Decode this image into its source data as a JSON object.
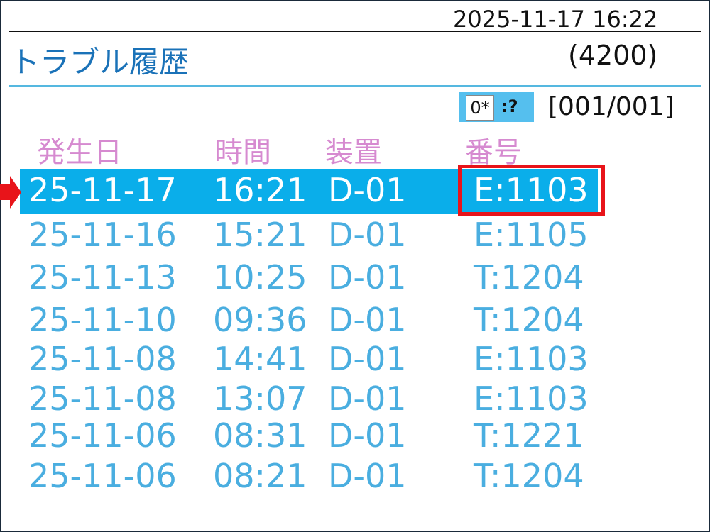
{
  "header": {
    "datetime": "2025-11-17 16:22",
    "title": "トラブル履歴",
    "code": "(4200)"
  },
  "toolbar": {
    "icon_label": "0*",
    "icon_help": ":?",
    "page": "[001/001]"
  },
  "columns": [
    "発生日",
    "時間",
    "装置",
    "番号"
  ],
  "rows": [
    {
      "date": "25-11-17",
      "time": "16:21",
      "device": "D-01",
      "number": "E:1103",
      "selected": true
    },
    {
      "date": "25-11-16",
      "time": "15:21",
      "device": "D-01",
      "number": "E:1105"
    },
    {
      "date": "25-11-13",
      "time": "10:25",
      "device": "D-01",
      "number": "T:1204"
    },
    {
      "date": "25-11-10",
      "time": "09:36",
      "device": "D-01",
      "number": "T:1204"
    },
    {
      "date": "25-11-08",
      "time": "14:41",
      "device": "D-01",
      "number": "E:1103"
    },
    {
      "date": "25-11-08",
      "time": "13:07",
      "device": "D-01",
      "number": "E:1103"
    },
    {
      "date": "25-11-06",
      "time": "08:31",
      "device": "D-01",
      "number": "T:1221"
    },
    {
      "date": "25-11-06",
      "time": "08:21",
      "device": "D-01",
      "number": "T:1204"
    }
  ],
  "colors": {
    "selection": "#0aaeea",
    "highlight_box": "#e8141a",
    "row_text": "#4aaee0",
    "header_text": "#d68ad0",
    "title": "#1a72b8"
  }
}
